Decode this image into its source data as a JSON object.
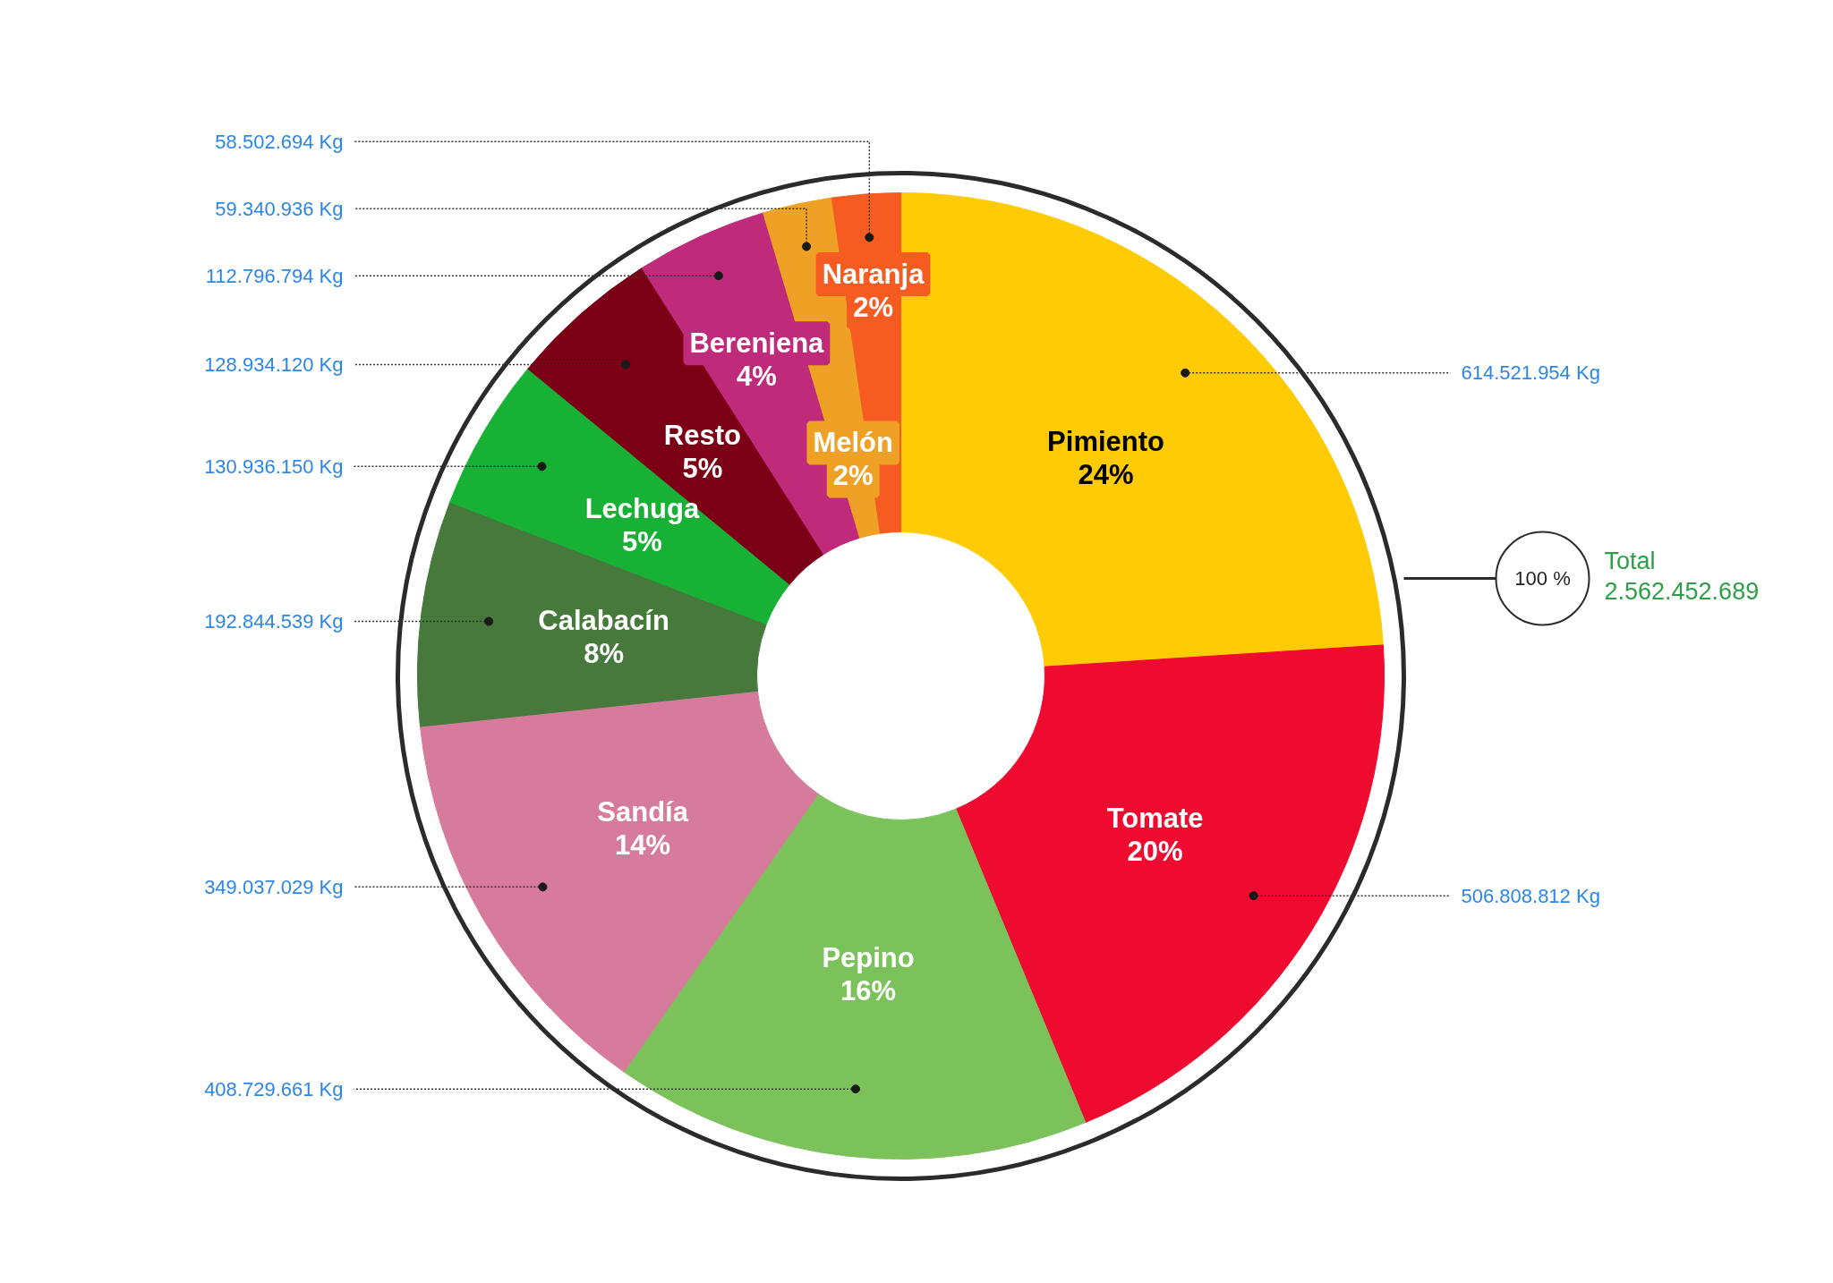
{
  "chart_data": {
    "type": "donut",
    "categories": [
      "Pimiento",
      "Tomate",
      "Pepino",
      "Sandía",
      "Calabacín",
      "Lechuga",
      "Resto",
      "Berenjena",
      "Melón",
      "Naranja"
    ],
    "values": [
      614521954,
      506808812,
      408729661,
      349037029,
      192844539,
      130936150,
      128934120,
      112796794,
      59340936,
      58502694
    ],
    "colors": [
      "#fecb05",
      "#ef0a2f",
      "#7bc25a",
      "#d77b9c",
      "#46793b",
      "#17b235",
      "#7b0016",
      "#bf2a7a",
      "#eea125",
      "#f65c22"
    ],
    "value_labels": [
      "614.521.954 Kg",
      "506.808.812 Kg",
      "408.729.661 Kg",
      "349.037.029 Kg",
      "192.844.539 Kg",
      "130.936.150 Kg",
      "128.934.120 Kg",
      "112.796.794 Kg",
      "59.340.936 Kg",
      "58.502.694 Kg"
    ],
    "annotations": [
      {
        "text": "24%",
        "x": "Pimiento"
      },
      {
        "text": "20%",
        "x": "Tomate"
      },
      {
        "text": "16%",
        "x": "Pepino"
      },
      {
        "text": "14%",
        "x": "Sandía"
      },
      {
        "text": "8%",
        "x": "Calabacín"
      },
      {
        "text": "5%",
        "x": "Lechuga"
      },
      {
        "text": "5%",
        "x": "Resto"
      },
      {
        "text": "4%",
        "x": "Berenjena"
      },
      {
        "text": "2%",
        "x": "Melón"
      },
      {
        "text": "2%",
        "x": "Naranja"
      },
      "100 %",
      "Total\n2.562.452.689"
    ]
  }
}
